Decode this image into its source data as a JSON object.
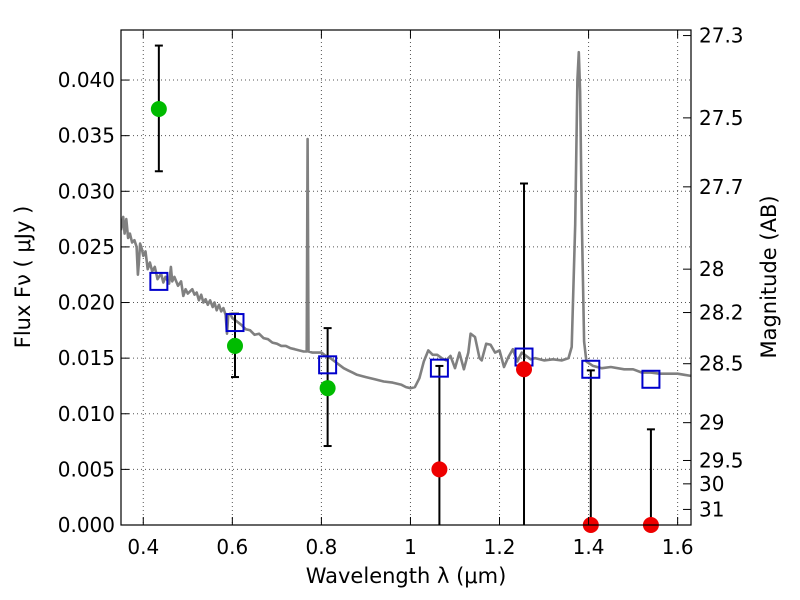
{
  "chart_data": {
    "type": "scatter",
    "xlabel": "Wavelength  λ (μm)",
    "ylabel": "Flux  Fν  ( μJy )",
    "y2label": "Magnitude (AB)",
    "xlim": [
      0.35,
      1.63
    ],
    "ylim": [
      0.0,
      0.0445
    ],
    "grid": true,
    "x_ticks": [
      {
        "value": 0.4,
        "label": "0.4"
      },
      {
        "value": 0.6,
        "label": "0.6"
      },
      {
        "value": 0.8,
        "label": "0.8"
      },
      {
        "value": 1.0,
        "label": "1"
      },
      {
        "value": 1.2,
        "label": "1.2"
      },
      {
        "value": 1.4,
        "label": "1.4"
      },
      {
        "value": 1.6,
        "label": "1.6"
      }
    ],
    "y_ticks": [
      {
        "value": 0.0,
        "label": "0.000"
      },
      {
        "value": 0.005,
        "label": "0.005"
      },
      {
        "value": 0.01,
        "label": "0.010"
      },
      {
        "value": 0.015,
        "label": "0.015"
      },
      {
        "value": 0.02,
        "label": "0.020"
      },
      {
        "value": 0.025,
        "label": "0.025"
      },
      {
        "value": 0.03,
        "label": "0.030"
      },
      {
        "value": 0.035,
        "label": "0.035"
      },
      {
        "value": 0.04,
        "label": "0.040"
      }
    ],
    "y2_ticks": [
      {
        "label": "27.3",
        "flux": 0.044
      },
      {
        "label": "27.5",
        "flux": 0.0366
      },
      {
        "label": "27.7",
        "flux": 0.0304
      },
      {
        "label": "28",
        "flux": 0.023
      },
      {
        "label": "28.2",
        "flux": 0.0191
      },
      {
        "label": "28.5",
        "flux": 0.0145
      },
      {
        "label": "29",
        "flux": 0.0092
      },
      {
        "label": "29.5",
        "flux": 0.0058
      },
      {
        "label": "30",
        "flux": 0.0037
      },
      {
        "label": "31",
        "flux": 0.0014
      }
    ],
    "colors": {
      "detection": "#00bb00",
      "upper_limit": "#ee0000",
      "model_point": "#0000cc",
      "spectrum": "#808080",
      "errorbar": "#000000",
      "grid": "#555555"
    },
    "series": [
      {
        "kind": "detection",
        "points": [
          {
            "x": 0.435,
            "y": 0.0374,
            "ylo": 0.0318,
            "yhi": 0.0431
          },
          {
            "x": 0.606,
            "y": 0.0161,
            "ylo": 0.0133,
            "yhi": 0.019
          },
          {
            "x": 0.814,
            "y": 0.0123,
            "ylo": 0.0071,
            "yhi": 0.0177
          }
        ]
      },
      {
        "kind": "upper_limit",
        "points": [
          {
            "x": 1.065,
            "y": 0.005,
            "ylo": 0.0,
            "yhi": 0.0143
          },
          {
            "x": 1.255,
            "y": 0.014,
            "ylo": 0.0,
            "yhi": 0.0307
          },
          {
            "x": 1.405,
            "y": 0.0,
            "ylo": 0.0,
            "yhi": 0.0139
          },
          {
            "x": 1.54,
            "y": 0.0,
            "ylo": 0.0,
            "yhi": 0.0086
          }
        ]
      },
      {
        "kind": "model_point",
        "points": [
          {
            "x": 0.435,
            "y": 0.0219
          },
          {
            "x": 0.606,
            "y": 0.0182
          },
          {
            "x": 0.814,
            "y": 0.0144
          },
          {
            "x": 1.065,
            "y": 0.0141
          },
          {
            "x": 1.255,
            "y": 0.0151
          },
          {
            "x": 1.405,
            "y": 0.014
          },
          {
            "x": 1.54,
            "y": 0.0131
          }
        ]
      },
      {
        "kind": "spectrum",
        "points": [
          [
            0.35,
            0.0265
          ],
          [
            0.355,
            0.0277
          ],
          [
            0.358,
            0.0262
          ],
          [
            0.362,
            0.0275
          ],
          [
            0.366,
            0.0258
          ],
          [
            0.37,
            0.0262
          ],
          [
            0.375,
            0.0254
          ],
          [
            0.38,
            0.0256
          ],
          [
            0.385,
            0.025
          ],
          [
            0.388,
            0.0225
          ],
          [
            0.39,
            0.0235
          ],
          [
            0.393,
            0.0253
          ],
          [
            0.397,
            0.0248
          ],
          [
            0.4,
            0.0242
          ],
          [
            0.405,
            0.0246
          ],
          [
            0.41,
            0.023
          ],
          [
            0.415,
            0.0236
          ],
          [
            0.42,
            0.0228
          ],
          [
            0.426,
            0.0232
          ],
          [
            0.432,
            0.0221
          ],
          [
            0.44,
            0.0226
          ],
          [
            0.445,
            0.0218
          ],
          [
            0.45,
            0.0223
          ],
          [
            0.458,
            0.0217
          ],
          [
            0.462,
            0.0232
          ],
          [
            0.465,
            0.0219
          ],
          [
            0.47,
            0.0223
          ],
          [
            0.478,
            0.0215
          ],
          [
            0.485,
            0.0219
          ],
          [
            0.49,
            0.0206
          ],
          [
            0.495,
            0.0212
          ],
          [
            0.5,
            0.0208
          ],
          [
            0.51,
            0.0212
          ],
          [
            0.515,
            0.0207
          ],
          [
            0.52,
            0.0209
          ],
          [
            0.525,
            0.0202
          ],
          [
            0.53,
            0.0207
          ],
          [
            0.535,
            0.02
          ],
          [
            0.54,
            0.0203
          ],
          [
            0.545,
            0.0198
          ],
          [
            0.55,
            0.0202
          ],
          [
            0.556,
            0.0196
          ],
          [
            0.56,
            0.02
          ],
          [
            0.565,
            0.0193
          ],
          [
            0.57,
            0.0198
          ],
          [
            0.575,
            0.0192
          ],
          [
            0.58,
            0.0195
          ],
          [
            0.585,
            0.0189
          ],
          [
            0.588,
            0.0172
          ],
          [
            0.591,
            0.0189
          ],
          [
            0.595,
            0.019
          ],
          [
            0.6,
            0.0186
          ],
          [
            0.61,
            0.0183
          ],
          [
            0.62,
            0.018
          ],
          [
            0.63,
            0.0176
          ],
          [
            0.64,
            0.0175
          ],
          [
            0.65,
            0.0171
          ],
          [
            0.66,
            0.0172
          ],
          [
            0.67,
            0.0168
          ],
          [
            0.68,
            0.0167
          ],
          [
            0.69,
            0.0164
          ],
          [
            0.7,
            0.0163
          ],
          [
            0.71,
            0.0161
          ],
          [
            0.72,
            0.0161
          ],
          [
            0.73,
            0.0159
          ],
          [
            0.74,
            0.0158
          ],
          [
            0.75,
            0.0157
          ],
          [
            0.76,
            0.0156
          ],
          [
            0.767,
            0.0156
          ],
          [
            0.769,
            0.0347
          ],
          [
            0.771,
            0.0156
          ],
          [
            0.78,
            0.0155
          ],
          [
            0.79,
            0.0155
          ],
          [
            0.8,
            0.0155
          ],
          [
            0.81,
            0.0152
          ],
          [
            0.82,
            0.015
          ],
          [
            0.83,
            0.0147
          ],
          [
            0.84,
            0.0144
          ],
          [
            0.85,
            0.0141
          ],
          [
            0.86,
            0.0139
          ],
          [
            0.87,
            0.0137
          ],
          [
            0.88,
            0.0135
          ],
          [
            0.9,
            0.0133
          ],
          [
            0.92,
            0.0131
          ],
          [
            0.94,
            0.0129
          ],
          [
            0.96,
            0.0128
          ],
          [
            0.98,
            0.0126
          ],
          [
            0.99,
            0.0124
          ],
          [
            1.0,
            0.0123
          ],
          [
            1.01,
            0.0124
          ],
          [
            1.02,
            0.0132
          ],
          [
            1.03,
            0.0147
          ],
          [
            1.04,
            0.0157
          ],
          [
            1.05,
            0.0153
          ],
          [
            1.06,
            0.0153
          ],
          [
            1.07,
            0.015
          ],
          [
            1.08,
            0.0148
          ],
          [
            1.09,
            0.0152
          ],
          [
            1.1,
            0.0141
          ],
          [
            1.11,
            0.0155
          ],
          [
            1.12,
            0.014
          ],
          [
            1.13,
            0.0155
          ],
          [
            1.135,
            0.0172
          ],
          [
            1.145,
            0.0169
          ],
          [
            1.155,
            0.015
          ],
          [
            1.16,
            0.0148
          ],
          [
            1.17,
            0.0163
          ],
          [
            1.18,
            0.0162
          ],
          [
            1.19,
            0.0155
          ],
          [
            1.2,
            0.0157
          ],
          [
            1.21,
            0.0142
          ],
          [
            1.22,
            0.0151
          ],
          [
            1.23,
            0.0158
          ],
          [
            1.24,
            0.0147
          ],
          [
            1.25,
            0.0155
          ],
          [
            1.26,
            0.0152
          ],
          [
            1.27,
            0.0149
          ],
          [
            1.28,
            0.015
          ],
          [
            1.3,
            0.0148
          ],
          [
            1.32,
            0.0149
          ],
          [
            1.34,
            0.0148
          ],
          [
            1.355,
            0.015
          ],
          [
            1.362,
            0.016
          ],
          [
            1.37,
            0.027
          ],
          [
            1.375,
            0.04
          ],
          [
            1.378,
            0.0425
          ],
          [
            1.381,
            0.039
          ],
          [
            1.385,
            0.027
          ],
          [
            1.39,
            0.0165
          ],
          [
            1.395,
            0.0147
          ],
          [
            1.41,
            0.0143
          ],
          [
            1.43,
            0.0141
          ],
          [
            1.45,
            0.0142
          ],
          [
            1.48,
            0.014
          ],
          [
            1.5,
            0.014
          ],
          [
            1.52,
            0.0137
          ],
          [
            1.54,
            0.0137
          ],
          [
            1.56,
            0.0136
          ],
          [
            1.58,
            0.0136
          ],
          [
            1.6,
            0.0136
          ],
          [
            1.615,
            0.0135
          ],
          [
            1.63,
            0.0134
          ]
        ]
      }
    ]
  }
}
